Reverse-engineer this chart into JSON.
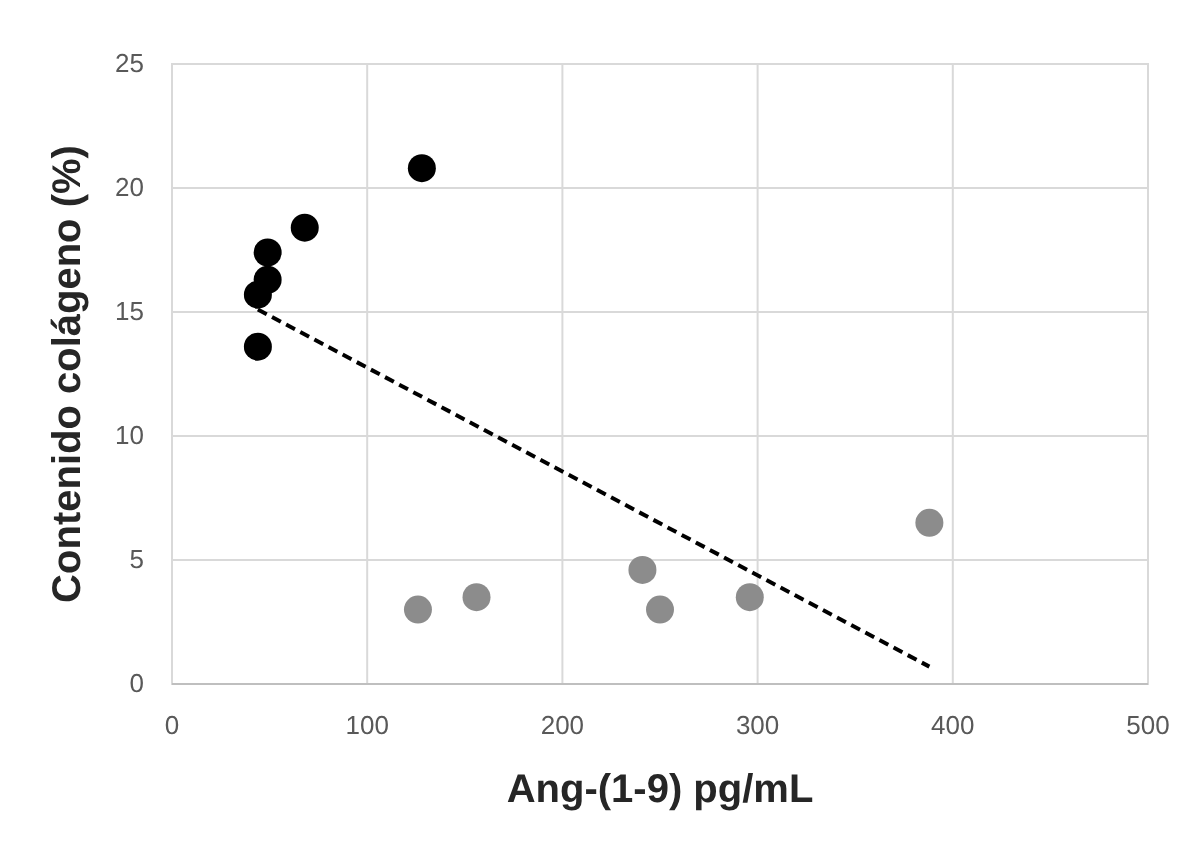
{
  "chart_data": {
    "type": "scatter",
    "xlabel": "Ang-(1-9) pg/mL",
    "ylabel": "Contenido colágeno (%)",
    "xlim": [
      0,
      500
    ],
    "xticks": [
      0,
      100,
      200,
      300,
      400,
      500
    ],
    "ylim": [
      0,
      25
    ],
    "yticks": [
      0,
      5,
      10,
      15,
      20,
      25
    ],
    "grid": true,
    "marker": "circle",
    "series": [
      {
        "color": "#000000",
        "x": [
          44,
          44,
          49,
          49,
          68,
          128
        ],
        "values": [
          15.7,
          13.6,
          16.3,
          17.4,
          18.4,
          20.8
        ]
      },
      {
        "color": "#8c8c8c",
        "x": [
          126,
          156,
          241,
          250,
          296,
          388
        ],
        "values": [
          3.0,
          3.5,
          4.6,
          3.0,
          3.5,
          6.5
        ]
      },
      {
        "type": "line",
        "color": "#000000",
        "line_style": "dashed",
        "marker": "none",
        "x": [
          44,
          388
        ],
        "values": [
          15.1,
          0.7
        ]
      }
    ]
  }
}
